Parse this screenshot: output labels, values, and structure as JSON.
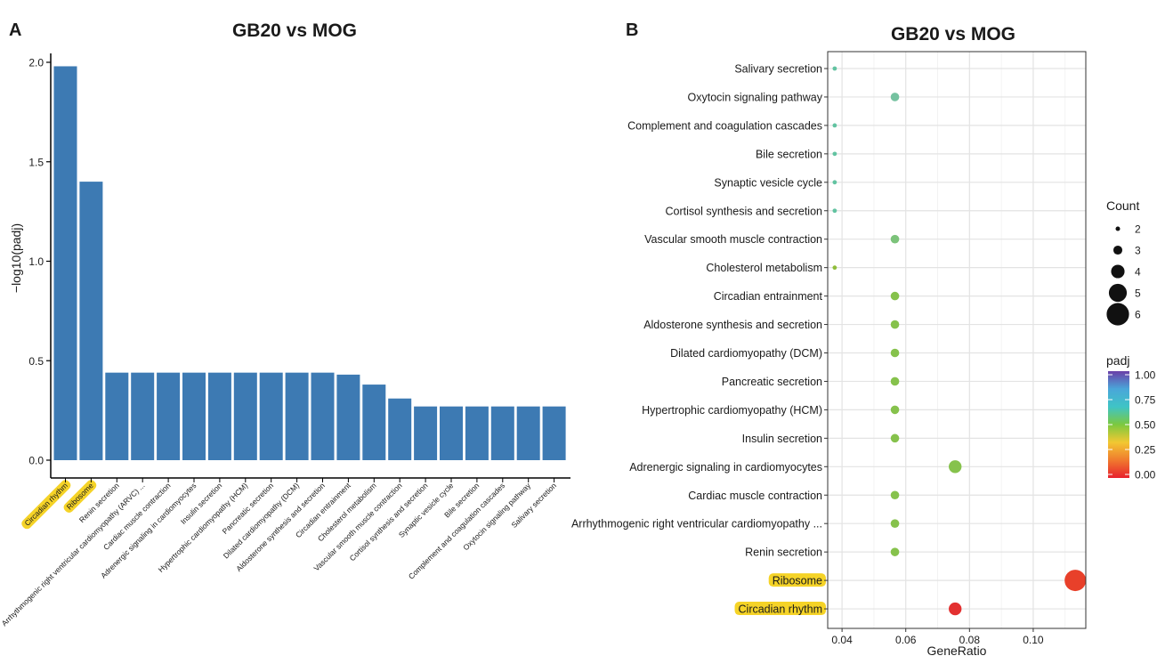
{
  "panels": {
    "a_label": "A",
    "b_label": "B"
  },
  "chart_data": [
    {
      "type": "bar",
      "title": "GB20 vs MOG",
      "xlabel": "",
      "ylabel": "−log10(padj)",
      "ylim": [
        0,
        2.1
      ],
      "yticks": [
        "0.0",
        "0.5",
        "1.0",
        "1.5",
        "2.0"
      ],
      "highlight_color": "#f5d327",
      "bar_color": "#3d7ab3",
      "categories": [
        "Circadian rhythm",
        "Ribosome",
        "Renin secretion",
        "Arrhythmogenic right ventricular cardiomyopathy (ARVC) ...",
        "Cardiac muscle contraction",
        "Adrenergic signaling in cardiomyocytes",
        "Insulin secretion",
        "Hypertrophic cardiomyopathy (HCM)",
        "Pancreatic secretion",
        "Dilated cardiomyopathy (DCM)",
        "Aldosterone synthesis and secretion",
        "Circadian entrainment",
        "Cholesterol metabolism",
        "Vascular smooth muscle contraction",
        "Cortisol synthesis and secretion",
        "Synaptic vesicle cycle",
        "Bile secretion",
        "Complement and coagulation cascades",
        "Oxytocin signaling pathway",
        "Salivary secretion"
      ],
      "values": [
        1.98,
        1.4,
        0.44,
        0.44,
        0.44,
        0.44,
        0.44,
        0.44,
        0.44,
        0.44,
        0.44,
        0.43,
        0.38,
        0.31,
        0.27,
        0.27,
        0.27,
        0.27,
        0.27,
        0.27
      ],
      "highlighted": [
        true,
        true,
        false,
        false,
        false,
        false,
        false,
        false,
        false,
        false,
        false,
        false,
        false,
        false,
        false,
        false,
        false,
        false,
        false,
        false
      ]
    },
    {
      "type": "scatter",
      "title": "GB20 vs MOG",
      "xlabel": "GeneRatio",
      "ylabel": "",
      "xlim": [
        0.0355,
        0.1165
      ],
      "xticks": [
        0.04,
        0.06,
        0.08,
        0.1
      ],
      "xtick_labels": [
        "0.04",
        "0.06",
        "0.08",
        "0.10"
      ],
      "highlight_color": "#f5d327",
      "points": [
        {
          "term": "Salivary secretion",
          "x": 0.0377,
          "count": 2,
          "padj": 0.54,
          "color": "#62c3a1"
        },
        {
          "term": "Oxytocin signaling pathway",
          "x": 0.0566,
          "count": 3,
          "padj": 0.54,
          "color": "#75c2a0"
        },
        {
          "term": "Complement and coagulation cascades",
          "x": 0.0377,
          "count": 2,
          "padj": 0.54,
          "color": "#62c3a1"
        },
        {
          "term": "Bile secretion",
          "x": 0.0377,
          "count": 2,
          "padj": 0.54,
          "color": "#62c3a1"
        },
        {
          "term": "Synaptic vesicle cycle",
          "x": 0.0377,
          "count": 2,
          "padj": 0.54,
          "color": "#62c3a1"
        },
        {
          "term": "Cortisol synthesis and secretion",
          "x": 0.0377,
          "count": 2,
          "padj": 0.54,
          "color": "#62c3a1"
        },
        {
          "term": "Vascular smooth muscle contraction",
          "x": 0.0566,
          "count": 3,
          "padj": 0.49,
          "color": "#7cc37a"
        },
        {
          "term": "Cholesterol metabolism",
          "x": 0.0377,
          "count": 2,
          "padj": 0.42,
          "color": "#8fbd3a"
        },
        {
          "term": "Circadian entrainment",
          "x": 0.0566,
          "count": 3,
          "padj": 0.37,
          "color": "#86c24c"
        },
        {
          "term": "Aldosterone synthesis and secretion",
          "x": 0.0566,
          "count": 3,
          "padj": 0.37,
          "color": "#86c24c"
        },
        {
          "term": "Dilated cardiomyopathy (DCM)",
          "x": 0.0566,
          "count": 3,
          "padj": 0.37,
          "color": "#86c24c"
        },
        {
          "term": "Pancreatic secretion",
          "x": 0.0566,
          "count": 3,
          "padj": 0.37,
          "color": "#86c24c"
        },
        {
          "term": "Hypertrophic cardiomyopathy (HCM)",
          "x": 0.0566,
          "count": 3,
          "padj": 0.37,
          "color": "#86c24c"
        },
        {
          "term": "Insulin secretion",
          "x": 0.0566,
          "count": 3,
          "padj": 0.37,
          "color": "#86c24c"
        },
        {
          "term": "Adrenergic signaling in cardiomyocytes",
          "x": 0.0755,
          "count": 4,
          "padj": 0.37,
          "color": "#86c24c"
        },
        {
          "term": "Cardiac muscle contraction",
          "x": 0.0566,
          "count": 3,
          "padj": 0.37,
          "color": "#86c24c"
        },
        {
          "term": "Arrhythmogenic right ventricular cardiomyopathy ...",
          "x": 0.0566,
          "count": 3,
          "padj": 0.37,
          "color": "#86c24c"
        },
        {
          "term": "Renin secretion",
          "x": 0.0566,
          "count": 3,
          "padj": 0.37,
          "color": "#86c24c"
        },
        {
          "term": "Ribosome",
          "x": 0.1132,
          "count": 6,
          "padj": 0.04,
          "color": "#e8402a"
        },
        {
          "term": "Circadian rhythm",
          "x": 0.0755,
          "count": 4,
          "padj": 0.01,
          "color": "#e33030"
        }
      ],
      "highlighted_terms": [
        "Ribosome",
        "Circadian rhythm"
      ],
      "size_legend": {
        "title": "Count",
        "values": [
          2,
          3,
          4,
          5,
          6
        ],
        "labels": [
          "2",
          "3",
          "4",
          "5",
          "6"
        ]
      },
      "color_legend": {
        "title": "padj",
        "range": [
          0,
          1
        ],
        "ticks": [
          1.0,
          0.75,
          0.5,
          0.25,
          0.0
        ],
        "tick_labels": [
          "1.00",
          "0.75",
          "0.50",
          "0.25",
          "0.00"
        ],
        "colors": [
          "#6a3fa8",
          "#4aa6d9",
          "#3fc4c6",
          "#7cc93f",
          "#f2c832",
          "#f07a2e",
          "#e8212e"
        ]
      }
    }
  ]
}
